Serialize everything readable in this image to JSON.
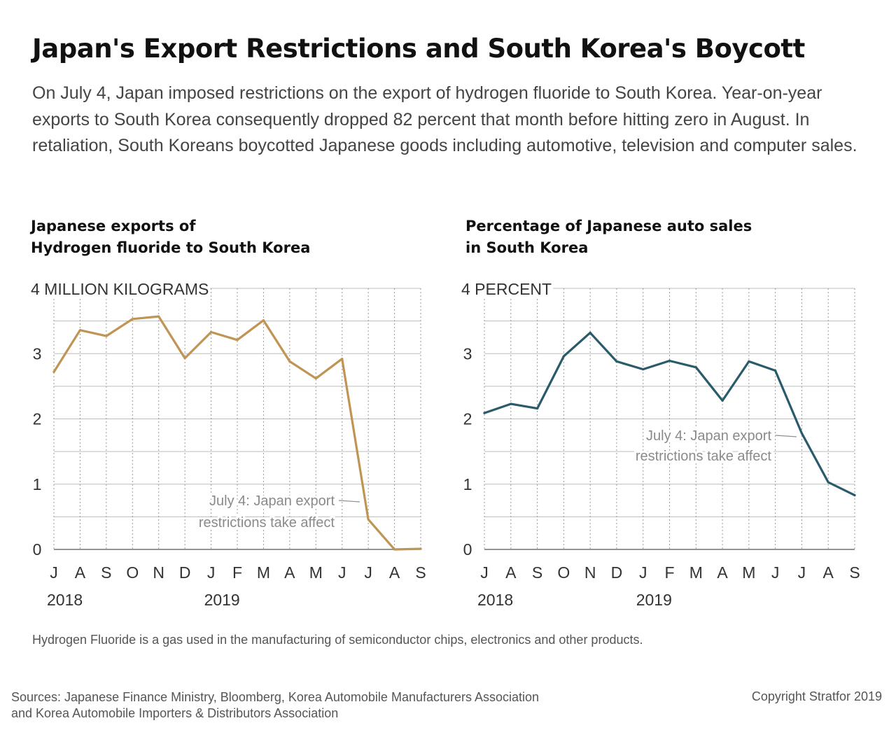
{
  "header": {
    "title": "Japan's Export Restrictions and South Korea's Boycott",
    "subtitle": "On July 4, Japan imposed restrictions on the export of hydrogen fluoride to South Korea. Year-on-year exports to South Korea consequently dropped 82 percent that month before hitting zero in August. In retaliation, South Koreans boycotted Japanese goods including automotive, television and computer sales."
  },
  "footer": {
    "note": "Hydrogen Fluoride is a gas used in the manufacturing of semiconductor chips, electronics  and other products.",
    "sources_line1": "Sources: Japanese Finance Ministry, Bloomberg, Korea Automobile Manufacturers Association",
    "sources_line2": "and Korea Automobile Importers & Distributors Association",
    "copyright": "Copyright Stratfor 2019"
  },
  "chart_data": [
    {
      "type": "line",
      "title_line1": "Japanese exports of",
      "title_line2": "Hydrogen fluoride to South Korea",
      "unit_label": "4 MILLION KILOGRAMS",
      "x": [
        "J",
        "A",
        "S",
        "O",
        "N",
        "D",
        "J",
        "F",
        "M",
        "A",
        "M",
        "J",
        "J",
        "A",
        "S"
      ],
      "year_labels": [
        {
          "index": 0,
          "label": "2018"
        },
        {
          "index": 6,
          "label": "2019"
        }
      ],
      "y_ticks": [
        "0",
        "1",
        "2",
        "3"
      ],
      "ylim": [
        0,
        4
      ],
      "grid": true,
      "values": [
        2.72,
        3.36,
        3.27,
        3.53,
        3.57,
        2.93,
        3.33,
        3.21,
        3.51,
        2.88,
        2.62,
        2.92,
        0.46,
        0.0,
        0.01
      ],
      "color": "#c09453",
      "annotation": {
        "line1": "July 4: Japan export",
        "line2": "restrictions take affect",
        "point_index": 12
      }
    },
    {
      "type": "line",
      "title_line1": "Percentage of Japanese auto sales",
      "title_line2": "in South Korea",
      "unit_label": "4 PERCENT",
      "x": [
        "J",
        "A",
        "S",
        "O",
        "N",
        "D",
        "J",
        "F",
        "M",
        "A",
        "M",
        "J",
        "J",
        "A",
        "S"
      ],
      "year_labels": [
        {
          "index": 0,
          "label": "2018"
        },
        {
          "index": 6,
          "label": "2019"
        }
      ],
      "y_ticks": [
        "0",
        "1",
        "2",
        "3"
      ],
      "ylim": [
        0,
        4
      ],
      "grid": true,
      "values": [
        2.09,
        2.23,
        2.16,
        2.96,
        3.32,
        2.88,
        2.76,
        2.89,
        2.79,
        2.28,
        2.88,
        2.74,
        1.78,
        1.03,
        0.83
      ],
      "color": "#2a5b6b",
      "annotation": {
        "line1": "July 4: Japan export",
        "line2": "restrictions take affect",
        "point_index": 12
      }
    }
  ]
}
